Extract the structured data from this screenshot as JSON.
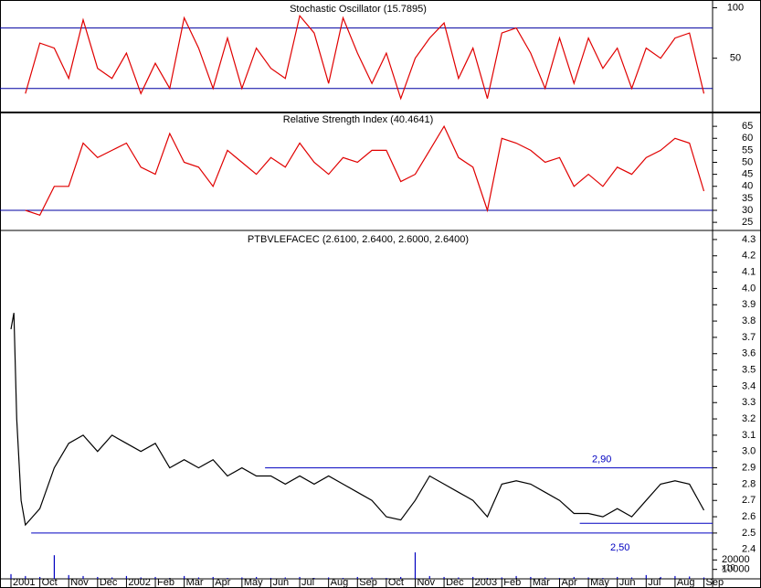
{
  "chart_data": [
    {
      "type": "line",
      "title": "Stochastic Oscillator (15.7895)",
      "color": "#e00000",
      "line_color": "#0000a0",
      "x": [
        0.5,
        1,
        1.5,
        2,
        2.5,
        3,
        3.5,
        4,
        4.5,
        5,
        5.5,
        6,
        6.5,
        7,
        7.5,
        8,
        8.5,
        9,
        9.5,
        10,
        10.5,
        11,
        11.5,
        12,
        12.5,
        13,
        13.5,
        14,
        14.5,
        15,
        15.5,
        16,
        16.5,
        17,
        17.5,
        18,
        18.5,
        19,
        19.5,
        20,
        20.5,
        21,
        21.5,
        22,
        22.5,
        23,
        23.5,
        24
      ],
      "values": [
        15,
        65,
        60,
        30,
        88,
        40,
        30,
        55,
        15,
        45,
        20,
        90,
        60,
        20,
        70,
        20,
        60,
        40,
        30,
        92,
        75,
        25,
        90,
        55,
        25,
        55,
        10,
        50,
        70,
        85,
        30,
        60,
        10,
        75,
        80,
        55,
        20,
        70,
        25,
        70,
        40,
        60,
        20,
        60,
        50,
        70,
        75,
        15
      ],
      "hlines": [
        80,
        20
      ],
      "xlim": [
        -0.38,
        24.3
      ],
      "ylim": [
        -2,
        105
      ],
      "yticks": [
        50,
        100
      ]
    },
    {
      "type": "line",
      "title": "Relative Strength Index (40.4641)",
      "color": "#e00000",
      "line_color": "#0000a0",
      "x": [
        0.5,
        1,
        1.5,
        2,
        2.5,
        3,
        3.5,
        4,
        4.5,
        5,
        5.5,
        6,
        6.5,
        7,
        7.5,
        8,
        8.5,
        9,
        9.5,
        10,
        10.5,
        11,
        11.5,
        12,
        12.5,
        13,
        13.5,
        14,
        14.5,
        15,
        15.5,
        16,
        16.5,
        17,
        17.5,
        18,
        18.5,
        19,
        19.5,
        20,
        20.5,
        21,
        21.5,
        22,
        22.5,
        23,
        23.5,
        24
      ],
      "values": [
        30,
        28,
        40,
        40,
        58,
        52,
        55,
        58,
        48,
        45,
        62,
        50,
        48,
        40,
        55,
        50,
        45,
        52,
        48,
        58,
        50,
        45,
        52,
        50,
        55,
        55,
        42,
        45,
        55,
        65,
        52,
        48,
        30,
        60,
        58,
        55,
        50,
        52,
        40,
        45,
        40,
        48,
        45,
        52,
        55,
        60,
        58,
        38
      ],
      "hlines": [
        30
      ],
      "xlim": [
        -0.38,
        24.3
      ],
      "ylim": [
        22,
        70
      ],
      "yticks": [
        25,
        30,
        35,
        40,
        45,
        50,
        55,
        60,
        65
      ]
    },
    {
      "type": "line",
      "title": "PTBVLEFACEC (2.6100, 2.6400, 2.6000, 2.6400)",
      "color": "#000000",
      "line_color": "#0000c0",
      "x": [
        0,
        0.1,
        0.2,
        0.35,
        0.5,
        0.75,
        1,
        1.5,
        2,
        2.5,
        3,
        3.5,
        4,
        4.5,
        5,
        5.5,
        6,
        6.5,
        7,
        7.5,
        8,
        8.5,
        9,
        9.5,
        10,
        10.5,
        11,
        11.5,
        12,
        12.5,
        13,
        13.5,
        14,
        14.5,
        15,
        15.5,
        16,
        16.5,
        17,
        17.5,
        18,
        18.5,
        19,
        19.5,
        20,
        20.5,
        21,
        21.5,
        22,
        22.5,
        23,
        23.5,
        24
      ],
      "values": [
        3.75,
        3.85,
        3.2,
        2.7,
        2.55,
        2.6,
        2.65,
        2.9,
        3.05,
        3.1,
        3.0,
        3.1,
        3.05,
        3.0,
        3.05,
        2.9,
        2.95,
        2.9,
        2.95,
        2.85,
        2.9,
        2.85,
        2.85,
        2.8,
        2.85,
        2.8,
        2.85,
        2.8,
        2.75,
        2.7,
        2.6,
        2.58,
        2.7,
        2.85,
        2.8,
        2.75,
        2.7,
        2.6,
        2.8,
        2.82,
        2.8,
        2.75,
        2.7,
        2.62,
        2.62,
        2.6,
        2.65,
        2.6,
        2.7,
        2.8,
        2.82,
        2.8,
        2.64
      ],
      "lines": [
        {
          "value": 2.9,
          "x": [
            8.8,
            24.3
          ],
          "label": "2,90"
        },
        {
          "value": 2.5,
          "x": [
            0.7,
            24.3
          ],
          "label": "2,50"
        },
        {
          "value": 2.56,
          "x": [
            19.7,
            24.3
          ]
        }
      ],
      "xlim": [
        -0.38,
        24.3
      ],
      "ylim": [
        2.32,
        4.35
      ],
      "yticks": [
        2.4,
        2.5,
        2.6,
        2.7,
        2.8,
        2.9,
        {
          "value": 3,
          "label": "3.0"
        },
        3.1,
        3.2,
        3.3,
        3.4,
        3.5,
        3.6,
        3.7,
        3.8,
        3.9,
        {
          "value": 4,
          "label": "4.0"
        },
        4.1,
        4.2,
        4.3
      ]
    },
    {
      "type": "bar",
      "color": "#0000c0",
      "unit_label": "x10",
      "x": [
        0,
        0.5,
        1,
        1.5,
        2,
        2.5,
        3,
        3.5,
        4,
        4.5,
        5,
        5.5,
        6,
        6.5,
        7,
        7.5,
        8,
        8.5,
        9,
        9.5,
        10,
        10.5,
        11,
        11.5,
        12,
        12.5,
        13,
        13.5,
        14,
        14.5,
        15,
        15.5,
        16,
        16.5,
        17,
        17.5,
        18,
        18.5,
        19,
        19.5,
        20,
        20.5,
        21,
        21.5,
        22,
        22.5,
        23,
        23.5,
        24
      ],
      "values": [
        5000,
        3000,
        2000,
        25000,
        4000,
        3000,
        2000,
        1500,
        3000,
        1500,
        2000,
        1000,
        3000,
        1500,
        2000,
        1000,
        1500,
        2000,
        1000,
        1500,
        2000,
        1000,
        1500,
        1000,
        2000,
        1500,
        1000,
        2000,
        28000,
        3000,
        2000,
        1500,
        2000,
        1000,
        1500,
        3000,
        2000,
        1500,
        1000,
        2000,
        1500,
        1000,
        2000,
        1500,
        4000,
        2000,
        3000,
        2500,
        1500
      ],
      "xlim": [
        -0.38,
        24.3
      ],
      "ylim": [
        0,
        30000
      ],
      "yticks": [
        10000,
        20000
      ],
      "xticks": [
        {
          "value": 0,
          "label": "2001"
        },
        {
          "value": 1,
          "label": "Oct"
        },
        {
          "value": 2,
          "label": "Nov"
        },
        {
          "value": 3,
          "label": "Dec"
        },
        {
          "value": 4,
          "label": "2002"
        },
        {
          "value": 5,
          "label": "Feb"
        },
        {
          "value": 6,
          "label": "Mar"
        },
        {
          "value": 7,
          "label": "Apr"
        },
        {
          "value": 8,
          "label": "May"
        },
        {
          "value": 9,
          "label": "Jun"
        },
        {
          "value": 10,
          "label": "Jul"
        },
        {
          "value": 11,
          "label": "Aug"
        },
        {
          "value": 12,
          "label": "Sep"
        },
        {
          "value": 13,
          "label": "Oct"
        },
        {
          "value": 14,
          "label": "Nov"
        },
        {
          "value": 15,
          "label": "Dec"
        },
        {
          "value": 16,
          "label": "2003"
        },
        {
          "value": 17,
          "label": "Feb"
        },
        {
          "value": 18,
          "label": "Mar"
        },
        {
          "value": 19,
          "label": "Apr"
        },
        {
          "value": 20,
          "label": "May"
        },
        {
          "value": 21,
          "label": "Jun"
        },
        {
          "value": 22,
          "label": "Jul"
        },
        {
          "value": 23,
          "label": "Aug"
        },
        {
          "value": 24,
          "label": "Sep"
        }
      ]
    }
  ]
}
